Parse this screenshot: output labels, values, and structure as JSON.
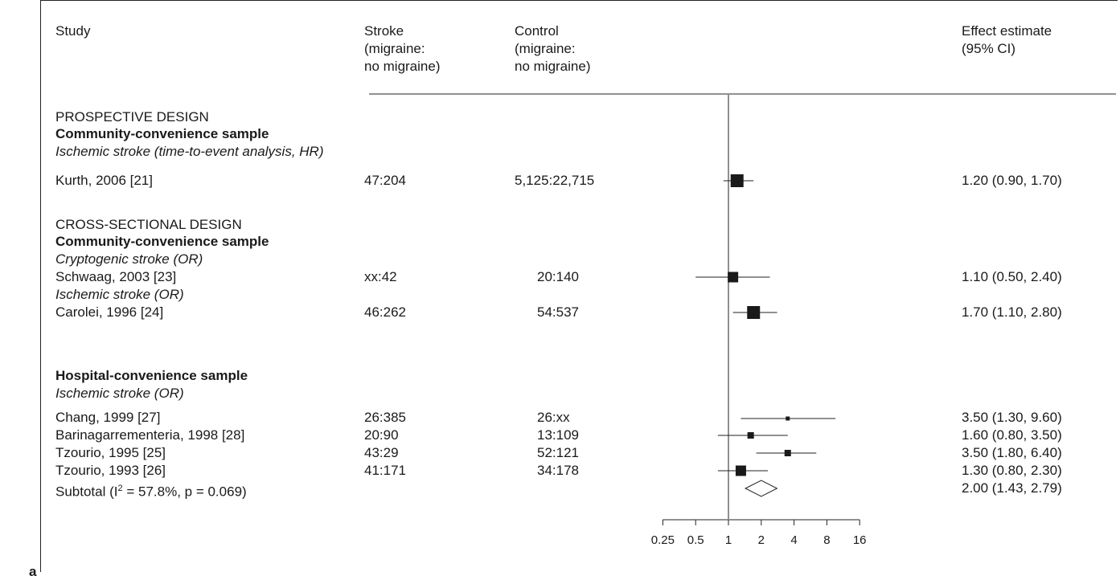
{
  "panel_label": "a",
  "headers": {
    "study": "Study",
    "stroke": [
      "Stroke",
      "(migraine:",
      "no migraine)"
    ],
    "control": [
      "Control",
      "(migraine:",
      "no migraine)"
    ],
    "effect": [
      "Effect estimate",
      "(95% CI)"
    ]
  },
  "sections": {
    "prospective": "PROSPECTIVE DESIGN",
    "community1": "Community-convenience sample",
    "ischemic_hr": "Ischemic stroke (time-to-event analysis, HR)",
    "cross": "CROSS-SECTIONAL DESIGN",
    "community2": "Community-convenience sample",
    "cryptogenic": "Cryptogenic stroke (OR)",
    "ischemic_or1": "Ischemic stroke (OR)",
    "hospital": "Hospital-convenience sample",
    "ischemic_or2": "Ischemic stroke (OR)"
  },
  "subtotal": {
    "label_pre": "Subtotal (I",
    "label_sup": "2",
    "label_post": " = 57.8%, p = 0.069)",
    "estimate": "2.00 (1.43, 2.79)"
  },
  "chart_data": {
    "type": "forest",
    "x_scale": "log",
    "xlim": [
      0.25,
      16
    ],
    "reference_line": 1,
    "ticks": [
      "0.25",
      "0.5",
      "1",
      "2",
      "4",
      "8",
      "16"
    ],
    "tick_values": [
      0.25,
      0.5,
      1,
      2,
      4,
      8,
      16
    ],
    "studies": [
      {
        "study": "Kurth, 2006 [21]",
        "stroke": "47:204",
        "control": "5,125:22,715",
        "est": 1.2,
        "lo": 0.9,
        "hi": 1.7,
        "label": "1.20 (0.90, 1.70)",
        "weight": "large"
      },
      {
        "study": "Schwaag, 2003 [23]",
        "stroke": "xx:42",
        "control": "20:140",
        "est": 1.1,
        "lo": 0.5,
        "hi": 2.4,
        "label": "1.10 (0.50, 2.40)",
        "weight": "medium"
      },
      {
        "study": "Carolei, 1996 [24]",
        "stroke": "46:262",
        "control": "54:537",
        "est": 1.7,
        "lo": 1.1,
        "hi": 2.8,
        "label": "1.70 (1.10, 2.80)",
        "weight": "large"
      },
      {
        "study": "Chang, 1999 [27]",
        "stroke": "26:385",
        "control": "26:xx",
        "est": 3.5,
        "lo": 1.3,
        "hi": 9.6,
        "label": "3.50 (1.30, 9.60)",
        "weight": "tiny"
      },
      {
        "study": "Barinagarrementeria, 1998 [28]",
        "stroke": "20:90",
        "control": "13:109",
        "est": 1.6,
        "lo": 0.8,
        "hi": 3.5,
        "label": "1.60 (0.80, 3.50)",
        "weight": "small"
      },
      {
        "study": "Tzourio, 1995 [25]",
        "stroke": "43:29",
        "control": "52:121",
        "est": 3.5,
        "lo": 1.8,
        "hi": 6.4,
        "label": "3.50 (1.80, 6.40)",
        "weight": "small"
      },
      {
        "study": "Tzourio, 1993 [26]",
        "stroke": "41:171",
        "control": "34:178",
        "est": 1.3,
        "lo": 0.8,
        "hi": 2.3,
        "label": "1.30 (0.80, 2.30)",
        "weight": "medium"
      }
    ],
    "pooled": {
      "est": 2.0,
      "lo": 1.43,
      "hi": 2.79
    }
  }
}
